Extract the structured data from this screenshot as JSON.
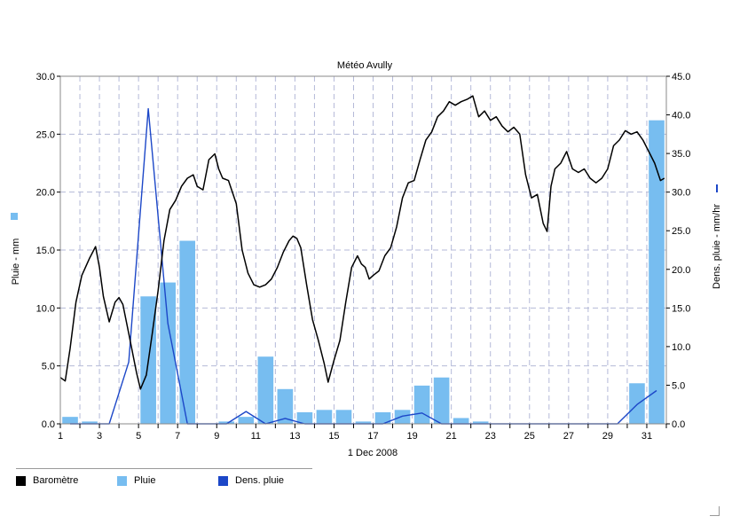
{
  "chart_data": {
    "type": "bar",
    "title": "Météo Avully",
    "xlabel": "1 Dec 2008",
    "ylabel_left": "Pluie - mm",
    "ylabel_right": "Dens. pluie - mm/hr",
    "ylim_left": [
      0,
      30
    ],
    "ylim_right": [
      0,
      45
    ],
    "yticks_left": [
      "0.0",
      "5.0",
      "10.0",
      "15.0",
      "20.0",
      "25.0",
      "30.0"
    ],
    "yticks_right": [
      "0.0",
      "5.0",
      "10.0",
      "15.0",
      "20.0",
      "25.0",
      "30.0",
      "35.0",
      "40.0",
      "45.0"
    ],
    "xticks": [
      "1",
      "3",
      "5",
      "7",
      "9",
      "11",
      "13",
      "15",
      "17",
      "19",
      "21",
      "23",
      "25",
      "27",
      "29",
      "31"
    ],
    "days": [
      1,
      2,
      3,
      4,
      5,
      6,
      7,
      8,
      9,
      10,
      11,
      12,
      13,
      14,
      15,
      16,
      17,
      18,
      19,
      20,
      21,
      22,
      23,
      24,
      25,
      26,
      27,
      28,
      29,
      30,
      31
    ],
    "grid": true,
    "legend": [
      {
        "name": "Baromètre",
        "color": "#000000"
      },
      {
        "name": "Pluie",
        "color": "#77bdf0"
      },
      {
        "name": "Dens. pluie",
        "color": "#1c47c8"
      }
    ],
    "series": [
      {
        "name": "Pluie",
        "axis": "left",
        "color": "#77bdf0",
        "type": "bar",
        "values": [
          0.6,
          0.2,
          0,
          0,
          11.0,
          12.2,
          15.8,
          0,
          0.2,
          0.6,
          5.8,
          3.0,
          1.0,
          1.2,
          1.2,
          0.2,
          1.0,
          1.2,
          3.3,
          4.0,
          0.5,
          0.2,
          0,
          0,
          0,
          0,
          0,
          0,
          0,
          3.5,
          26.2
        ]
      },
      {
        "name": "Dens. pluie",
        "axis": "right",
        "color": "#1c47c8",
        "type": "line",
        "x": [
          1.5,
          2.5,
          3.5,
          4.5,
          5.5,
          6.5,
          7.5,
          8.5,
          9.5,
          10.5,
          11.5,
          12.5,
          13.5,
          14.5,
          15.5,
          16.5,
          17.5,
          18.5,
          19.5,
          20.5,
          21.5,
          22.5,
          23.5,
          24.5,
          25.5,
          26.5,
          27.5,
          28.5,
          29.5,
          30.5,
          31.5
        ],
        "values": [
          0,
          0,
          0,
          8,
          40.8,
          13,
          0,
          0,
          0,
          1.6,
          0,
          0.7,
          0,
          0,
          0,
          0,
          0,
          1.0,
          1.4,
          0,
          0,
          0,
          0,
          0,
          0,
          0,
          0,
          0,
          0,
          2.5,
          4.3
        ]
      },
      {
        "name": "Baromètre",
        "axis": "left",
        "color": "#000000",
        "type": "line",
        "x": [
          1.0,
          1.25,
          1.5,
          1.8,
          2.1,
          2.5,
          2.8,
          3.0,
          3.2,
          3.5,
          3.8,
          4.0,
          4.2,
          4.5,
          4.9,
          5.1,
          5.4,
          5.7,
          6.0,
          6.3,
          6.6,
          6.9,
          7.2,
          7.5,
          7.8,
          8.0,
          8.3,
          8.6,
          8.9,
          9.1,
          9.3,
          9.6,
          10.0,
          10.3,
          10.6,
          10.9,
          11.2,
          11.5,
          11.8,
          12.1,
          12.4,
          12.7,
          12.9,
          13.1,
          13.3,
          13.6,
          13.9,
          14.2,
          14.5,
          14.7,
          15.0,
          15.3,
          15.6,
          15.9,
          16.2,
          16.4,
          16.6,
          16.8,
          17.0,
          17.3,
          17.6,
          17.9,
          18.2,
          18.5,
          18.8,
          19.1,
          19.4,
          19.7,
          20.0,
          20.3,
          20.6,
          20.9,
          21.2,
          21.5,
          21.8,
          22.1,
          22.4,
          22.7,
          23.0,
          23.3,
          23.6,
          23.9,
          24.2,
          24.5,
          24.8,
          25.1,
          25.4,
          25.7,
          25.9,
          26.1,
          26.3,
          26.6,
          26.9,
          27.2,
          27.5,
          27.8,
          28.1,
          28.4,
          28.7,
          29.0,
          29.3,
          29.6,
          29.9,
          30.2,
          30.5,
          30.8,
          31.1,
          31.4,
          31.7,
          31.9
        ],
        "values": [
          4.0,
          3.7,
          6.5,
          10.5,
          12.8,
          14.3,
          15.3,
          13.5,
          11.0,
          8.8,
          10.5,
          10.9,
          10.3,
          7.8,
          4.4,
          3.0,
          4.2,
          7.8,
          11.5,
          15.8,
          18.5,
          19.3,
          20.5,
          21.2,
          21.5,
          20.5,
          20.2,
          22.8,
          23.3,
          22.0,
          21.2,
          21.0,
          19.0,
          15.0,
          13.0,
          12.0,
          11.8,
          12.0,
          12.5,
          13.5,
          14.8,
          15.8,
          16.2,
          16.0,
          15.2,
          12.0,
          9.0,
          7.2,
          5.2,
          3.6,
          5.5,
          7.2,
          10.5,
          13.5,
          14.5,
          13.8,
          13.5,
          12.5,
          12.8,
          13.2,
          14.5,
          15.2,
          17.0,
          19.5,
          20.8,
          21.0,
          22.8,
          24.5,
          25.2,
          26.5,
          27.0,
          27.8,
          27.5,
          27.8,
          28.0,
          28.3,
          26.5,
          27.0,
          26.2,
          26.5,
          25.7,
          25.2,
          25.6,
          25.0,
          21.5,
          19.5,
          19.8,
          17.3,
          16.6,
          20.5,
          22.0,
          22.5,
          23.5,
          22.0,
          21.7,
          22.0,
          21.2,
          20.8,
          21.2,
          22.0,
          24.0,
          24.5,
          25.3,
          25.0,
          25.2,
          24.5,
          23.5,
          22.5,
          21.0,
          21.2
        ]
      }
    ]
  }
}
